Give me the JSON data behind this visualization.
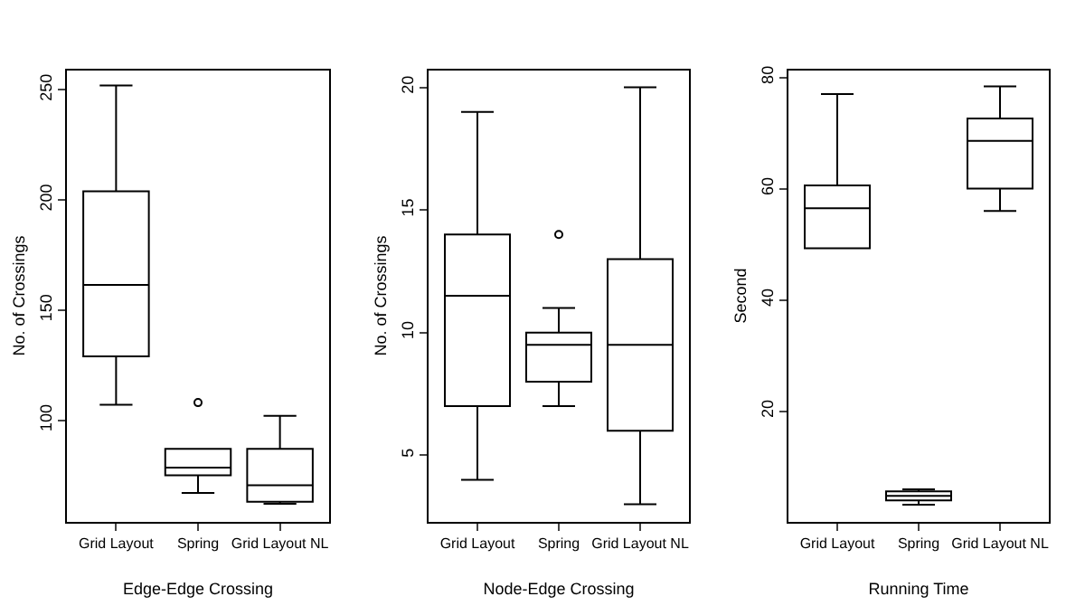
{
  "chart_data": [
    {
      "type": "box",
      "categories": [
        "Grid Layout",
        "Spring",
        "Grid Layout NL"
      ],
      "xlabel": "Edge-Edge Crossing",
      "ylabel": "No. of Crossings",
      "ylim": [
        54,
        259
      ],
      "yticks": [
        100,
        150,
        200,
        250
      ],
      "boxes": [
        {
          "low": 107,
          "q1": 129,
          "median": 161.5,
          "q3": 204,
          "high": 252
        },
        {
          "low": 67,
          "q1": 75,
          "median": 78.5,
          "q3": 87,
          "high": 87,
          "outliers": [
            108
          ]
        },
        {
          "low": 62,
          "q1": 63,
          "median": 70.5,
          "q3": 87,
          "high": 102
        }
      ]
    },
    {
      "type": "box",
      "categories": [
        "Grid Layout",
        "Spring",
        "Grid Layout NL"
      ],
      "xlabel": "Node-Edge Crossing",
      "ylabel": "No. of Crossings",
      "ylim": [
        2.3,
        20.7
      ],
      "yticks": [
        5,
        10,
        15,
        20
      ],
      "boxes": [
        {
          "low": 4,
          "q1": 7,
          "median": 11.5,
          "q3": 14,
          "high": 19
        },
        {
          "low": 7,
          "q1": 8,
          "median": 9.5,
          "q3": 10,
          "high": 11,
          "outliers": [
            14
          ]
        },
        {
          "low": 3,
          "q1": 6,
          "median": 9.5,
          "q3": 13,
          "high": 20
        }
      ]
    },
    {
      "type": "box",
      "categories": [
        "Grid Layout",
        "Spring",
        "Grid Layout NL"
      ],
      "xlabel": "Running Time",
      "ylabel": "Second",
      "ylim": [
        0.2,
        81.3
      ],
      "yticks": [
        20,
        40,
        60,
        80
      ],
      "boxes": [
        {
          "low": 49.3,
          "q1": 49.3,
          "median": 56.5,
          "q3": 60.6,
          "high": 77
        },
        {
          "low": 3.2,
          "q1": 4,
          "median": 4.8,
          "q3": 5.6,
          "high": 6
        },
        {
          "low": 56,
          "q1": 60,
          "median": 68.6,
          "q3": 72.6,
          "high": 78.4
        }
      ]
    }
  ]
}
